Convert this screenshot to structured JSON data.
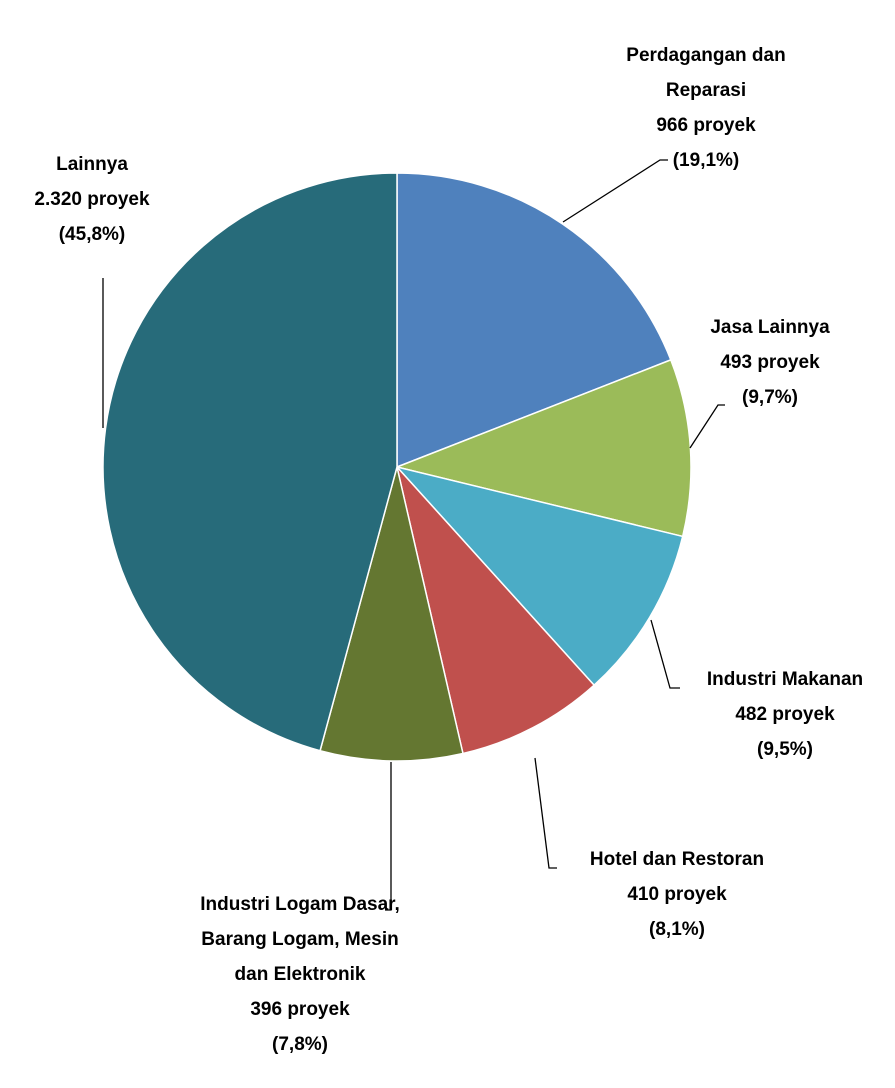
{
  "chart_data": {
    "type": "pie",
    "categories": [
      "Perdagangan dan Reparasi",
      "Jasa Lainnya",
      "Industri Makanan",
      "Hotel dan Restoran",
      "Industri Logam Dasar, Barang Logam, Mesin dan Elektronik",
      "Lainnya"
    ],
    "values": [
      966,
      493,
      482,
      410,
      396,
      2320
    ],
    "value_labels": [
      "966 proyek",
      "493 proyek",
      "482 proyek",
      "410 proyek",
      "396 proyek",
      "2.320 proyek"
    ],
    "percentages": [
      19.1,
      9.7,
      9.5,
      8.1,
      7.8,
      45.8
    ],
    "percentage_labels": [
      "(19,1%)",
      "(9,7%)",
      "(9,5%)",
      "(8,1%)",
      "(7,8%)",
      "(45,8%)"
    ],
    "colors": [
      "#4f81bd",
      "#9bbb59",
      "#4bacc6",
      "#c0504d",
      "#647731",
      "#276b7a"
    ]
  }
}
